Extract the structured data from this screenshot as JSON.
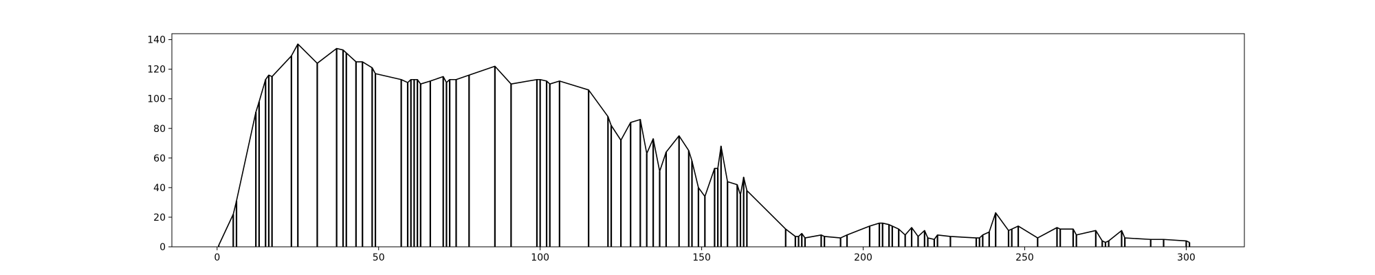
{
  "chart_data": {
    "type": "line",
    "title": "",
    "xlabel": "",
    "ylabel": "",
    "xlim": [
      -14,
      318
    ],
    "ylim": [
      0,
      144
    ],
    "xticks": [
      0,
      50,
      100,
      150,
      200,
      250,
      300
    ],
    "yticks": [
      0,
      20,
      40,
      60,
      80,
      100,
      120,
      140
    ],
    "grid": false,
    "legend": "none",
    "line_color": "#000000",
    "x": [
      0.5,
      5,
      6,
      12,
      13,
      15,
      16,
      17,
      23,
      25,
      31,
      37,
      39,
      40,
      43,
      45,
      48,
      49,
      57,
      59,
      60,
      61,
      62,
      63,
      66,
      70,
      71,
      72,
      74,
      78,
      86,
      91,
      99,
      100,
      102,
      103,
      106,
      115,
      121,
      122,
      125,
      128,
      131,
      133,
      135,
      137,
      139,
      143,
      146,
      147,
      149,
      151,
      154,
      155,
      156,
      158,
      161,
      162,
      163,
      164,
      176,
      179,
      180,
      181,
      182,
      187,
      188,
      193,
      195,
      202,
      205,
      206,
      208,
      209,
      211,
      213,
      215,
      217,
      219,
      220,
      222,
      223,
      227,
      235,
      236,
      237,
      239,
      241,
      245,
      246,
      248,
      254,
      260,
      261,
      265,
      266,
      272,
      274,
      275,
      276,
      280,
      281,
      289,
      293,
      300,
      301
    ],
    "y": [
      1,
      22,
      31,
      91,
      98,
      113,
      116,
      115,
      129,
      137,
      124,
      134,
      133,
      131,
      125,
      125,
      121,
      117,
      113,
      111,
      113,
      113,
      113,
      110,
      112,
      115,
      111,
      113,
      113,
      116,
      122,
      110,
      113,
      113,
      112,
      110,
      112,
      106,
      88,
      82,
      72,
      84,
      86,
      63,
      73,
      51,
      64,
      75,
      65,
      58,
      40,
      34,
      53,
      53,
      68,
      44,
      42,
      35,
      47,
      38,
      12,
      7,
      7,
      9,
      6,
      8,
      7,
      6,
      8,
      14,
      16,
      16,
      15,
      14,
      12,
      8,
      13,
      7,
      11,
      6,
      5,
      8,
      7,
      6,
      6,
      8,
      10,
      23,
      11,
      12,
      14,
      6,
      13,
      12,
      12,
      8,
      11,
      4,
      3,
      4,
      11,
      6,
      5,
      5,
      4,
      3
    ]
  }
}
